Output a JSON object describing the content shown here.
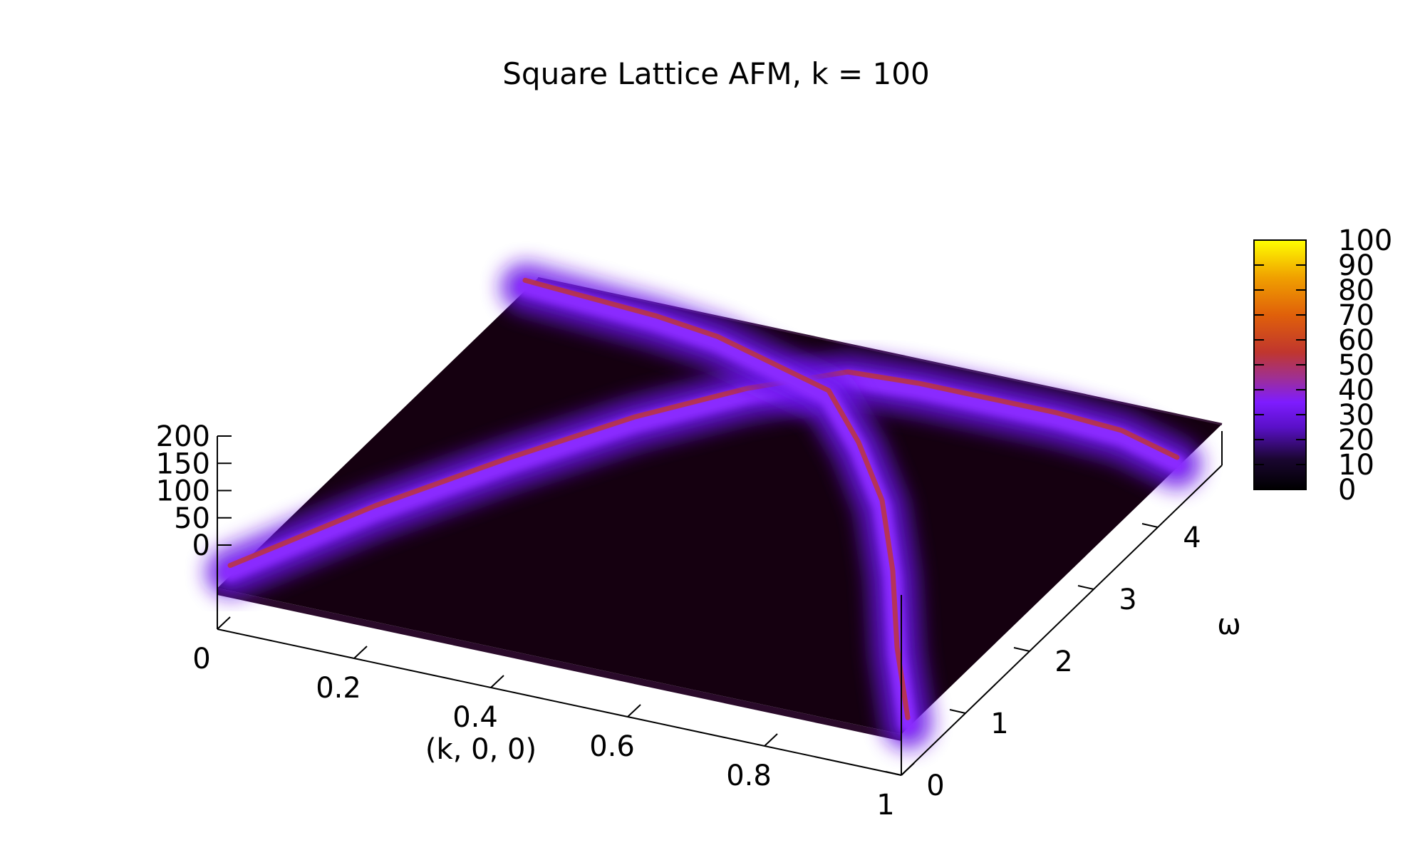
{
  "chart_data": {
    "type": "surface",
    "title": "Square Lattice AFM, k = 100",
    "xlabel": "(k, 0, 0)",
    "ylabel": "ω",
    "zlabel": "",
    "xlim": [
      0,
      1
    ],
    "ylim": [
      0,
      5
    ],
    "zlim": [
      0,
      200
    ],
    "x_ticks": [
      "0",
      "0.2",
      "0.4",
      "0.6",
      "0.8",
      "1"
    ],
    "y_ticks": [
      "0",
      "1",
      "2",
      "3",
      "4"
    ],
    "z_ticks": [
      "0",
      "50",
      "100",
      "150",
      "200"
    ],
    "colorbar": {
      "range": [
        0,
        100
      ],
      "ticks": [
        "0",
        "10",
        "20",
        "30",
        "40",
        "50",
        "60",
        "70",
        "80",
        "90",
        "100"
      ],
      "palette": [
        "#000000",
        "#3a0a72",
        "#7e1cff",
        "#c0362e",
        "#e8730a",
        "#ffd400",
        "#ffff00"
      ]
    },
    "ridges": [
      {
        "name_hidden": true,
        "points": [
          [
            0.0,
            0.2
          ],
          [
            0.1,
            1.4
          ],
          [
            0.2,
            2.4
          ],
          [
            0.3,
            3.3
          ],
          [
            0.4,
            4.0
          ],
          [
            0.5,
            4.5
          ],
          [
            0.6,
            4.55
          ],
          [
            0.7,
            4.55
          ],
          [
            0.8,
            4.55
          ],
          [
            0.9,
            4.5
          ],
          [
            1.0,
            4.3
          ]
        ]
      },
      {
        "name_hidden": true,
        "points": [
          [
            0.0,
            4.8
          ],
          [
            0.1,
            4.75
          ],
          [
            0.2,
            4.7
          ],
          [
            0.3,
            4.6
          ],
          [
            0.4,
            4.4
          ],
          [
            0.5,
            4.2
          ],
          [
            0.6,
            3.6
          ],
          [
            0.7,
            2.9
          ],
          [
            0.8,
            2.0
          ],
          [
            0.9,
            1.0
          ],
          [
            1.0,
            0.1
          ]
        ]
      }
    ],
    "grid": false,
    "legend": "colorbar-right"
  }
}
